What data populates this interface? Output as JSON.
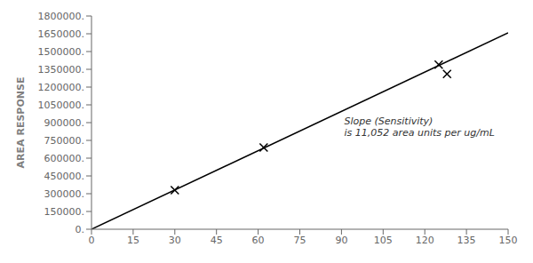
{
  "chart_data": {
    "type": "scatter",
    "ylabel": "AREA RESPONSE",
    "xlim": [
      0,
      150
    ],
    "ylim": [
      0,
      1800000
    ],
    "xticks": [
      0,
      15,
      30,
      45,
      60,
      75,
      90,
      105,
      120,
      135,
      150
    ],
    "yticks": [
      {
        "value": 0,
        "label": "0."
      },
      {
        "value": 150000,
        "label": "150000."
      },
      {
        "value": 300000,
        "label": "300000."
      },
      {
        "value": 450000,
        "label": "450000."
      },
      {
        "value": 600000,
        "label": "600000."
      },
      {
        "value": 750000,
        "label": "750000."
      },
      {
        "value": 900000,
        "label": "900000."
      },
      {
        "value": 1050000,
        "label": "1050000."
      },
      {
        "value": 1200000,
        "label": "1200000."
      },
      {
        "value": 1350000,
        "label": "1350000."
      },
      {
        "value": 1500000,
        "label": "1500000."
      },
      {
        "value": 1650000,
        "label": "1650000."
      },
      {
        "value": 1800000,
        "label": "1800000."
      }
    ],
    "grid": false,
    "series": [
      {
        "type": "line",
        "color": "#000000",
        "x": [
          0,
          150
        ],
        "values": [
          0,
          1657800
        ]
      },
      {
        "type": "scatter",
        "color": "#000000",
        "marker": "x",
        "x": [
          30,
          62,
          125,
          128
        ],
        "values": [
          330000,
          690000,
          1390000,
          1310000
        ]
      }
    ],
    "annotations": [
      {
        "text": "Slope (Sensitivity)\nis 11,052 area units per ug/mL",
        "x": 91,
        "y": 860000
      }
    ]
  }
}
